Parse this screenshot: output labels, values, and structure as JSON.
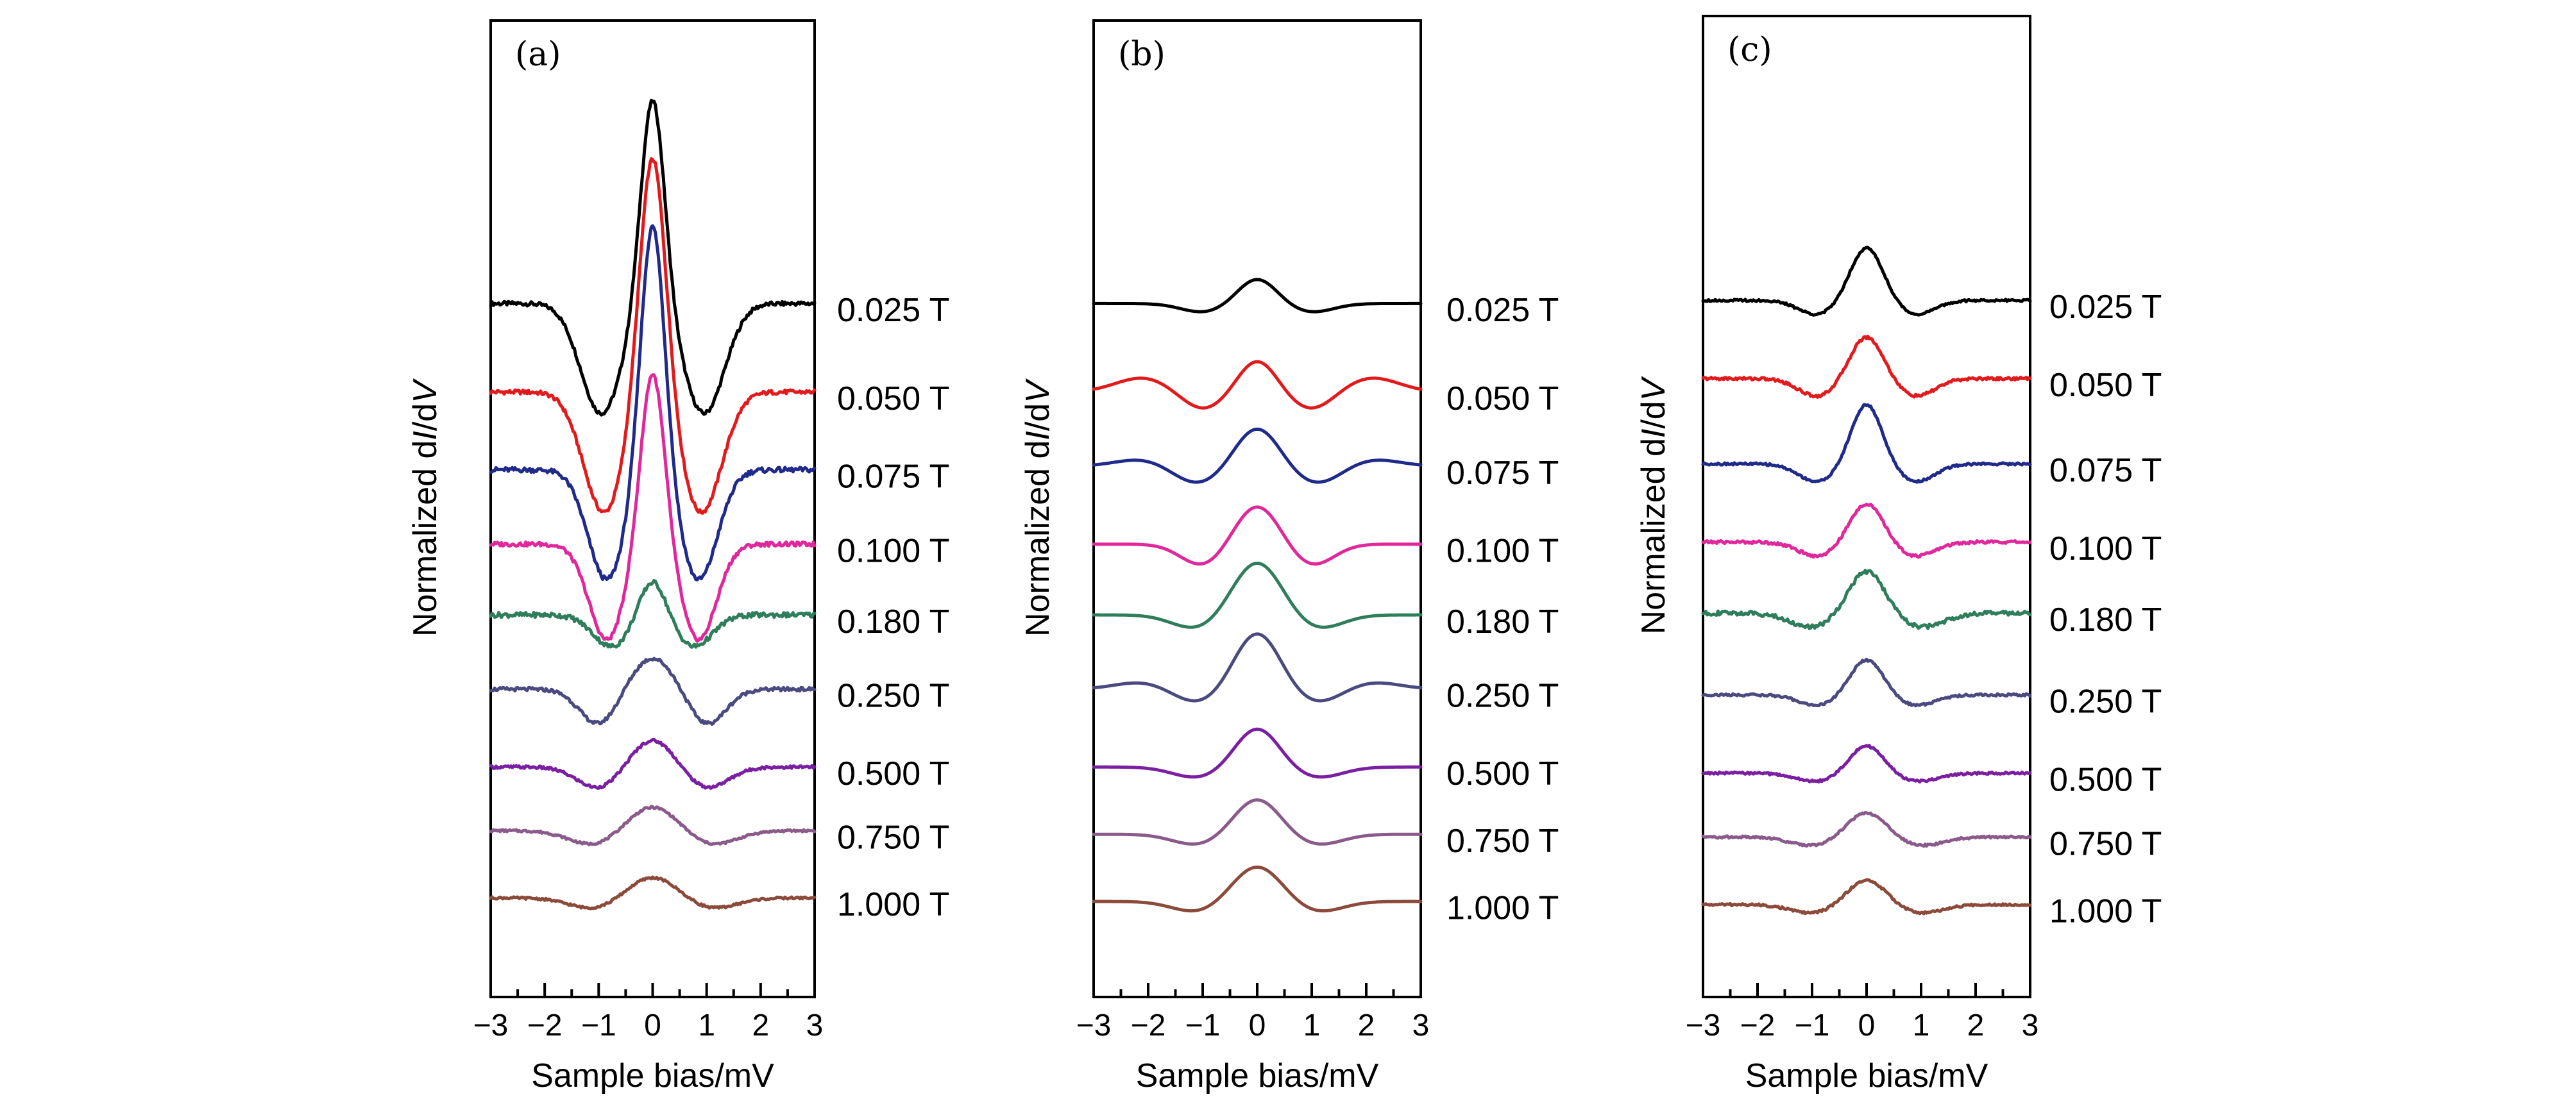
{
  "chart_data": [
    {
      "type": "line",
      "panel_label": "(a)",
      "xlabel": "Sample bias/mV",
      "ylabel_prefix": "Normalized d",
      "ylabel_I": "I",
      "ylabel_slash": "/d",
      "ylabel_V": "V",
      "xlim": [
        -3,
        3
      ],
      "xticks": [
        -3,
        -2,
        -1,
        0,
        1,
        2,
        3
      ],
      "xtick_labels": [
        "−3",
        "−2",
        "−1",
        "0",
        "1",
        "2",
        "3"
      ],
      "series": [
        {
          "name": "0.025 T",
          "color": "#000000",
          "offset": 7.6,
          "peak": 3.0,
          "peak_width": 0.22,
          "dip": 1.55,
          "dip_pos": 0.95,
          "dip_width": 0.38,
          "edge": 0.0,
          "noise": 0.06
        },
        {
          "name": "0.050 T",
          "color": "#e31a1c",
          "offset": 6.35,
          "peak": 3.5,
          "peak_width": 0.24,
          "dip": 1.7,
          "dip_pos": 0.9,
          "dip_width": 0.38,
          "edge": 0.0,
          "noise": 0.06
        },
        {
          "name": "0.075 T",
          "color": "#1f2a8a",
          "offset": 5.25,
          "peak": 3.6,
          "peak_width": 0.22,
          "dip": 1.55,
          "dip_pos": 0.85,
          "dip_width": 0.35,
          "edge": 0.0,
          "noise": 0.07
        },
        {
          "name": "0.100 T",
          "color": "#e0279b",
          "offset": 4.2,
          "peak": 2.5,
          "peak_width": 0.22,
          "dip": 1.35,
          "dip_pos": 0.85,
          "dip_width": 0.33,
          "edge": 0.0,
          "noise": 0.06
        },
        {
          "name": "0.180 T",
          "color": "#2e7d5b",
          "offset": 3.2,
          "peak": 0.55,
          "peak_width": 0.25,
          "dip": 0.45,
          "dip_pos": 0.75,
          "dip_width": 0.35,
          "edge": 0.0,
          "noise": 0.07
        },
        {
          "name": "0.250 T",
          "color": "#4a4a80",
          "offset": 2.15,
          "peak": 0.45,
          "peak_width": 0.4,
          "dip": 0.5,
          "dip_pos": 1.0,
          "dip_width": 0.35,
          "edge": 0.0,
          "noise": 0.05
        },
        {
          "name": "0.500 T",
          "color": "#7b1fa2",
          "offset": 1.05,
          "peak": 0.4,
          "peak_width": 0.4,
          "dip": 0.3,
          "dip_pos": 1.0,
          "dip_width": 0.4,
          "edge": 0.0,
          "noise": 0.04
        },
        {
          "name": "0.750 T",
          "color": "#8a5a8a",
          "offset": 0.15,
          "peak": 0.35,
          "peak_width": 0.45,
          "dip": 0.2,
          "dip_pos": 1.1,
          "dip_width": 0.45,
          "edge": 0.0,
          "noise": 0.03
        },
        {
          "name": "1.000 T",
          "color": "#8b4a3a",
          "offset": -0.8,
          "peak": 0.3,
          "peak_width": 0.45,
          "dip": 0.15,
          "dip_pos": 1.1,
          "dip_width": 0.45,
          "edge": 0.0,
          "noise": 0.03
        }
      ]
    },
    {
      "type": "line",
      "panel_label": "(b)",
      "xlabel": "Sample bias/mV",
      "ylabel_prefix": "Normalized d",
      "ylabel_I": "I",
      "ylabel_slash": "/d",
      "ylabel_V": "V",
      "xlim": [
        -3,
        3
      ],
      "xticks": [
        -3,
        -2,
        -1,
        0,
        1,
        2,
        3
      ],
      "xtick_labels": [
        "−3",
        "−2",
        "−1",
        "0",
        "1",
        "2",
        "3"
      ],
      "series": [
        {
          "name": "0.025 T",
          "color": "#000000",
          "offset": 7.6,
          "peak": 0.35,
          "peak_width": 0.35,
          "dip": 0.12,
          "dip_pos": 1.0,
          "dip_width": 0.4,
          "edge": 0.0,
          "noise": 0.0
        },
        {
          "name": "0.050 T",
          "color": "#e31a1c",
          "offset": 6.35,
          "peak": 0.45,
          "peak_width": 0.35,
          "dip": 0.25,
          "dip_pos": 1.0,
          "dip_width": 0.4,
          "edge": 0.2,
          "noise": 0.0
        },
        {
          "name": "0.075 T",
          "color": "#1f2a8a",
          "offset": 5.3,
          "peak": 0.55,
          "peak_width": 0.4,
          "dip": 0.25,
          "dip_pos": 1.1,
          "dip_width": 0.45,
          "edge": 0.1,
          "noise": 0.0
        },
        {
          "name": "0.100 T",
          "color": "#e0279b",
          "offset": 4.2,
          "peak": 0.55,
          "peak_width": 0.4,
          "dip": 0.3,
          "dip_pos": 1.0,
          "dip_width": 0.4,
          "edge": 0.0,
          "noise": 0.0
        },
        {
          "name": "0.180 T",
          "color": "#2e7d5b",
          "offset": 3.2,
          "peak": 0.75,
          "peak_width": 0.45,
          "dip": 0.2,
          "dip_pos": 1.1,
          "dip_width": 0.45,
          "edge": 0.0,
          "noise": 0.0
        },
        {
          "name": "0.250 T",
          "color": "#4a4a80",
          "offset": 2.15,
          "peak": 0.8,
          "peak_width": 0.42,
          "dip": 0.2,
          "dip_pos": 1.1,
          "dip_width": 0.45,
          "edge": 0.1,
          "noise": 0.0
        },
        {
          "name": "0.500 T",
          "color": "#7b1fa2",
          "offset": 1.05,
          "peak": 0.55,
          "peak_width": 0.4,
          "dip": 0.15,
          "dip_pos": 1.1,
          "dip_width": 0.45,
          "edge": 0.0,
          "noise": 0.0
        },
        {
          "name": "0.750 T",
          "color": "#8a5a8a",
          "offset": 0.1,
          "peak": 0.5,
          "peak_width": 0.42,
          "dip": 0.15,
          "dip_pos": 1.1,
          "dip_width": 0.45,
          "edge": 0.0,
          "noise": 0.0
        },
        {
          "name": "1.000 T",
          "color": "#8b4a3a",
          "offset": -0.85,
          "peak": 0.5,
          "peak_width": 0.45,
          "dip": 0.15,
          "dip_pos": 1.1,
          "dip_width": 0.45,
          "edge": 0.0,
          "noise": 0.0
        }
      ]
    },
    {
      "type": "line",
      "panel_label": "(c)",
      "xlabel": "Sample bias/mV",
      "ylabel_prefix": "Normalized d",
      "ylabel_I": "I",
      "ylabel_slash": "/d",
      "ylabel_V": "V",
      "xlim": [
        -3,
        3
      ],
      "xticks": [
        -3,
        -2,
        -1,
        0,
        1,
        2,
        3
      ],
      "xtick_labels": [
        "−3",
        "−2",
        "−1",
        "0",
        "1",
        "2",
        "3"
      ],
      "series": [
        {
          "name": "0.025 T",
          "color": "#000000",
          "offset": 7.6,
          "peak": 0.75,
          "peak_width": 0.3,
          "dip": 0.2,
          "dip_pos": 0.9,
          "dip_width": 0.35,
          "edge": 0.0,
          "noise": 0.03
        },
        {
          "name": "0.050 T",
          "color": "#e31a1c",
          "offset": 6.5,
          "peak": 0.6,
          "peak_width": 0.3,
          "dip": 0.25,
          "dip_pos": 0.9,
          "dip_width": 0.35,
          "edge": 0.0,
          "noise": 0.04
        },
        {
          "name": "0.075 T",
          "color": "#1f2a8a",
          "offset": 5.3,
          "peak": 0.85,
          "peak_width": 0.28,
          "dip": 0.25,
          "dip_pos": 0.9,
          "dip_width": 0.35,
          "edge": 0.0,
          "noise": 0.03
        },
        {
          "name": "0.100 T",
          "color": "#e0279b",
          "offset": 4.2,
          "peak": 0.55,
          "peak_width": 0.3,
          "dip": 0.2,
          "dip_pos": 0.9,
          "dip_width": 0.35,
          "edge": 0.0,
          "noise": 0.04
        },
        {
          "name": "0.180 T",
          "color": "#2e7d5b",
          "offset": 3.2,
          "peak": 0.6,
          "peak_width": 0.33,
          "dip": 0.2,
          "dip_pos": 1.0,
          "dip_width": 0.4,
          "edge": 0.0,
          "noise": 0.06
        },
        {
          "name": "0.250 T",
          "color": "#4a4a80",
          "offset": 2.05,
          "peak": 0.5,
          "peak_width": 0.3,
          "dip": 0.15,
          "dip_pos": 0.9,
          "dip_width": 0.35,
          "edge": 0.0,
          "noise": 0.03
        },
        {
          "name": "0.500 T",
          "color": "#7b1fa2",
          "offset": 0.95,
          "peak": 0.4,
          "peak_width": 0.32,
          "dip": 0.12,
          "dip_pos": 0.9,
          "dip_width": 0.4,
          "edge": 0.0,
          "noise": 0.03
        },
        {
          "name": "0.750 T",
          "color": "#8a5a8a",
          "offset": 0.05,
          "peak": 0.35,
          "peak_width": 0.35,
          "dip": 0.12,
          "dip_pos": 1.0,
          "dip_width": 0.4,
          "edge": 0.0,
          "noise": 0.03
        },
        {
          "name": "1.000 T",
          "color": "#8b4a3a",
          "offset": -0.9,
          "peak": 0.35,
          "peak_width": 0.35,
          "dip": 0.12,
          "dip_pos": 1.0,
          "dip_width": 0.4,
          "edge": 0.0,
          "noise": 0.03
        }
      ]
    }
  ]
}
